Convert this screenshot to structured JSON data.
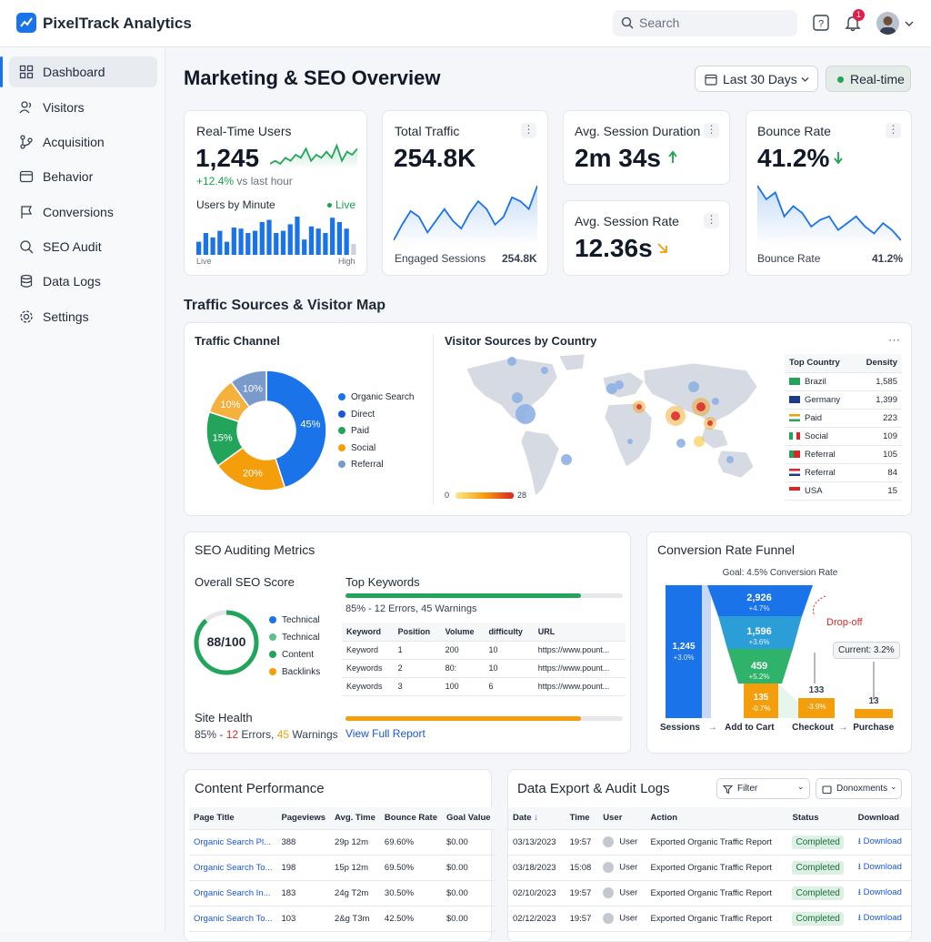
{
  "app": {
    "title": "PixelTrack Analytics"
  },
  "header": {
    "search_placeholder": "Search",
    "notifications_count": "1"
  },
  "sidebar": {
    "items": [
      {
        "label": "Dashboard",
        "icon": "grid-icon"
      },
      {
        "label": "Visitors",
        "icon": "users-icon"
      },
      {
        "label": "Acquisition",
        "icon": "branch-icon"
      },
      {
        "label": "Behavior",
        "icon": "window-icon"
      },
      {
        "label": "Conversions",
        "icon": "flag-icon"
      },
      {
        "label": "SEO Audit",
        "icon": "search-icon"
      },
      {
        "label": "Data Logs",
        "icon": "database-icon"
      },
      {
        "label": "Settings",
        "icon": "gear-icon"
      }
    ]
  },
  "page": {
    "title": "Marketing & SEO Overview",
    "date_range": "Last 30 Days",
    "realtime_label": "Real-time"
  },
  "kpis": {
    "realtime": {
      "title": "Real-Time Users",
      "value": "1,245",
      "delta": "+12.4%",
      "delta_suffix": "vs last hour",
      "sub_title": "Users by Minute",
      "live": "Live",
      "axis_left": "Live",
      "axis_right": "High"
    },
    "traffic": {
      "title": "Total Traffic",
      "value": "254.8K",
      "footer_label": "Engaged Sessions",
      "footer_value": "254.8K"
    },
    "duration": {
      "title": "Avg. Session Duration",
      "value": "2m 34s"
    },
    "rate": {
      "title": "Avg. Session Rate",
      "value": "12.36s"
    },
    "bounce": {
      "title": "Bounce Rate",
      "value": "41.2%",
      "footer_label": "Bounce Rate",
      "footer_value": "41.2%"
    }
  },
  "section_title": "Traffic Sources & Visitor Map",
  "traffic_channel": {
    "title": "Traffic Channel",
    "legend": [
      "Organic Search",
      "Direct",
      "Paid",
      "Social",
      "Referral"
    ]
  },
  "visitor_map": {
    "title": "Visitor Sources by Country",
    "scale_min": "0",
    "scale_max": "28",
    "table_headers": [
      "Top Country",
      "Density"
    ],
    "rows": [
      {
        "country": "Brazil",
        "density": "1,585"
      },
      {
        "country": "Germany",
        "density": "1,399"
      },
      {
        "country": "Paid",
        "density": "223"
      },
      {
        "country": "Social",
        "density": "109"
      },
      {
        "country": "Referral",
        "density": "105"
      },
      {
        "country": "Referral",
        "density": "84"
      },
      {
        "country": "USA",
        "density": "15"
      }
    ]
  },
  "seo": {
    "title": "SEO Auditing Metrics",
    "score_title": "Overall SEO Score",
    "score": "88/100",
    "score_fraction": 0.88,
    "legend": [
      "Technical",
      "Technical",
      "Content",
      "Backlinks"
    ],
    "keywords_title": "Top Keywords",
    "keywords_progress": 0.85,
    "keywords_summary": "85% - 12 Errors, 45 Warnings",
    "headers": [
      "Keyword",
      "Position",
      "Volume",
      "difficulty",
      "URL"
    ],
    "rows": [
      [
        "Keyword",
        "1",
        "200",
        "10",
        "https://www.pount..."
      ],
      [
        "Keywords",
        "2",
        "80:",
        "10",
        "https://www.pount..."
      ],
      [
        "Keywords",
        "3",
        "100",
        "6",
        "https://www.pount..."
      ]
    ],
    "health_title": "Site Health",
    "health_pct": "85% - ",
    "health_errors": "12",
    "health_errors_label": " Errors, ",
    "health_warnings": "45",
    "health_warnings_label": " Warnings",
    "health_progress": 0.85,
    "view_report": "View Full Report"
  },
  "funnel": {
    "title": "Conversion Rate Funnel",
    "goal": "Goal: 4.5% Conversion Rate",
    "sessions_value": "1,245",
    "sessions_pct": "+3.0%",
    "levels": [
      {
        "value": "2,926",
        "pct": "+4.7%"
      },
      {
        "value": "1,596",
        "pct": "+3.6%"
      },
      {
        "value": "459",
        "pct": "+5.2%"
      },
      {
        "value": "135",
        "pct": "-0.7%"
      }
    ],
    "checkout_value": "133",
    "checkout_pct": "-3.9%",
    "purchase_value": "13",
    "dropoff": "Drop-off",
    "current": "Current: 3.2%",
    "stages": [
      "Sessions",
      "Add to Cart",
      "Checkout",
      "Purchase"
    ]
  },
  "content": {
    "title": "Content Performance",
    "headers": [
      "Page Title",
      "Pageviews",
      "Avg. Time",
      "Bounce Rate",
      "Goal Value"
    ],
    "rows": [
      [
        "Organic Search Pl...",
        "388",
        "29p 12m",
        "69.60%",
        "$0.00"
      ],
      [
        "Organic Search To...",
        "198",
        "15p 12m",
        "69.50%",
        "$0.00"
      ],
      [
        "Organic Search In...",
        "183",
        "24g T2m",
        "30.50%",
        "$0.00"
      ],
      [
        "Organic Search To...",
        "103",
        "2&g T3m",
        "42.50%",
        "$0.00"
      ]
    ]
  },
  "logs": {
    "title": "Data Export & Audit Logs",
    "filter": "Filter",
    "documents": "Donoxments",
    "headers": [
      "Date",
      "Time",
      "User",
      "Action",
      "Status",
      "Download"
    ],
    "rows": [
      [
        "03/13/2023",
        "19:57",
        "User",
        "Exported Organic Traffic Report",
        "Completed",
        "Download"
      ],
      [
        "03/18/2023",
        "15:08",
        "User",
        "Exported Organic Traffic Report",
        "Completed",
        "Download"
      ],
      [
        "02/10/2023",
        "19:57",
        "User",
        "Exported Organic Traffic Report",
        "Completed",
        "Download"
      ],
      [
        "02/12/2023",
        "19:57",
        "User",
        "Exported Organic Traffic Report",
        "Completed",
        "Download"
      ]
    ]
  },
  "chart_data": [
    {
      "type": "line",
      "title": "",
      "series": [
        {
          "values": [
            3,
            4,
            3,
            5,
            4,
            6,
            5,
            8,
            4,
            6,
            5,
            7,
            5,
            9,
            4,
            7,
            6,
            8
          ]
        }
      ]
    },
    {
      "type": "bar",
      "title": "Users by Minute",
      "series": [
        {
          "values": [
            12,
            20,
            16,
            22,
            12,
            25,
            24,
            20,
            22,
            30,
            32,
            20,
            22,
            28,
            35,
            14,
            26,
            24,
            20,
            34,
            30,
            24,
            10
          ]
        }
      ]
    },
    {
      "type": "area",
      "title": "",
      "series": [
        {
          "values": [
            20,
            28,
            35,
            32,
            24,
            30,
            36,
            30,
            26,
            34,
            40,
            36,
            28,
            32,
            42,
            40,
            36,
            48
          ]
        }
      ]
    },
    {
      "type": "area",
      "title": "",
      "series": [
        {
          "values": [
            48,
            40,
            44,
            30,
            36,
            32,
            24,
            28,
            30,
            22,
            26,
            30,
            24,
            20,
            26,
            22,
            16
          ]
        }
      ]
    },
    {
      "type": "pie",
      "title": "Traffic Channel",
      "categories": [
        "Organic Search",
        "Paid",
        "Social",
        "Direct",
        "Referral"
      ],
      "values": [
        45,
        20,
        15,
        10,
        10
      ],
      "colors": [
        "#1a73e8",
        "#f59e0b",
        "#22a55b",
        "#f5b13d",
        "#7b9acc"
      ]
    }
  ]
}
